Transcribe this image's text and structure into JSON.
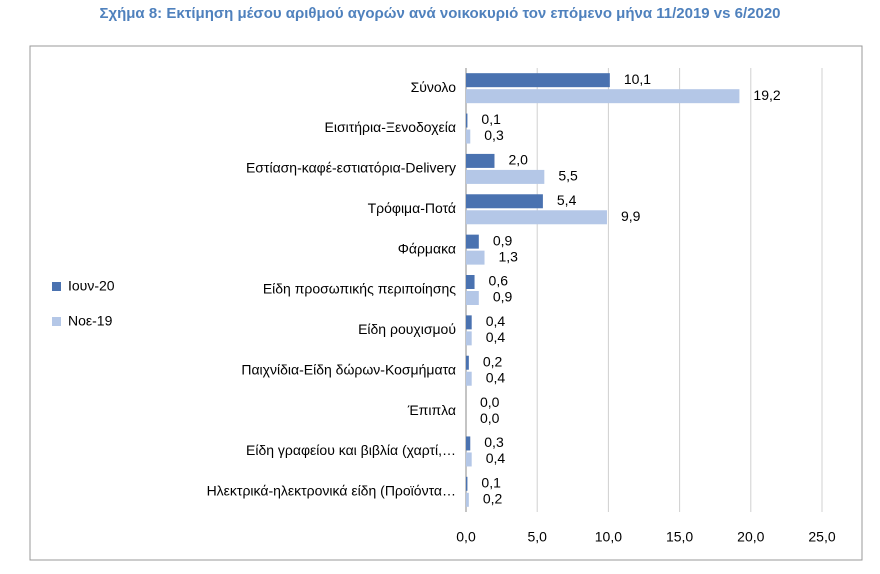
{
  "chart_data": {
    "type": "hbar",
    "title": "Σχήμα 8: Εκτίμηση μέσου αριθμού αγορών ανά νοικοκυριό τον επόμενο μήνα 11/2019 vs 6/2020",
    "categories": [
      "Σύνολο",
      "Εισιτήρια-Ξενοδοχεία",
      "Εστίαση-καφέ-εστιατόρια-Delivery",
      "Τρόφιμα-Ποτά",
      "Φάρμακα",
      "Είδη προσωπικής περιποίησης",
      "Είδη ρουχισμού",
      "Παιχνίδια-Είδη δώρων-Κοσμήματα",
      "Έπιπλα",
      "Είδη γραφείου και βιβλία (χαρτί,…",
      "Ηλεκτρικά-ηλεκτρονικά είδη (Προϊόντα…"
    ],
    "series": [
      {
        "name": "Ιουν-20",
        "color": "#4a72b0",
        "values": [
          10.1,
          0.1,
          2.0,
          5.4,
          0.9,
          0.6,
          0.4,
          0.2,
          0.0,
          0.3,
          0.1
        ],
        "value_labels": [
          "10,1",
          "0,1",
          "2,0",
          "5,4",
          "0,9",
          "0,6",
          "0,4",
          "0,2",
          "0,0",
          "0,3",
          "0,1"
        ]
      },
      {
        "name": "Νοε-19",
        "color": "#b4c7e7",
        "values": [
          19.2,
          0.3,
          5.5,
          9.9,
          1.3,
          0.9,
          0.4,
          0.4,
          0.0,
          0.4,
          0.2
        ],
        "value_labels": [
          "19,2",
          "0,3",
          "5,5",
          "9,9",
          "1,3",
          "0,9",
          "0,4",
          "0,4",
          "0,0",
          "0,4",
          "0,2"
        ]
      }
    ],
    "xlim": [
      0,
      25
    ],
    "xticks": [
      {
        "value": 0,
        "label": "0,0"
      },
      {
        "value": 5,
        "label": "5,0"
      },
      {
        "value": 10,
        "label": "10,0"
      },
      {
        "value": 15,
        "label": "15,0"
      },
      {
        "value": 20,
        "label": "20,0"
      },
      {
        "value": 25,
        "label": "25,0"
      }
    ],
    "grid": true,
    "legend": "left"
  }
}
